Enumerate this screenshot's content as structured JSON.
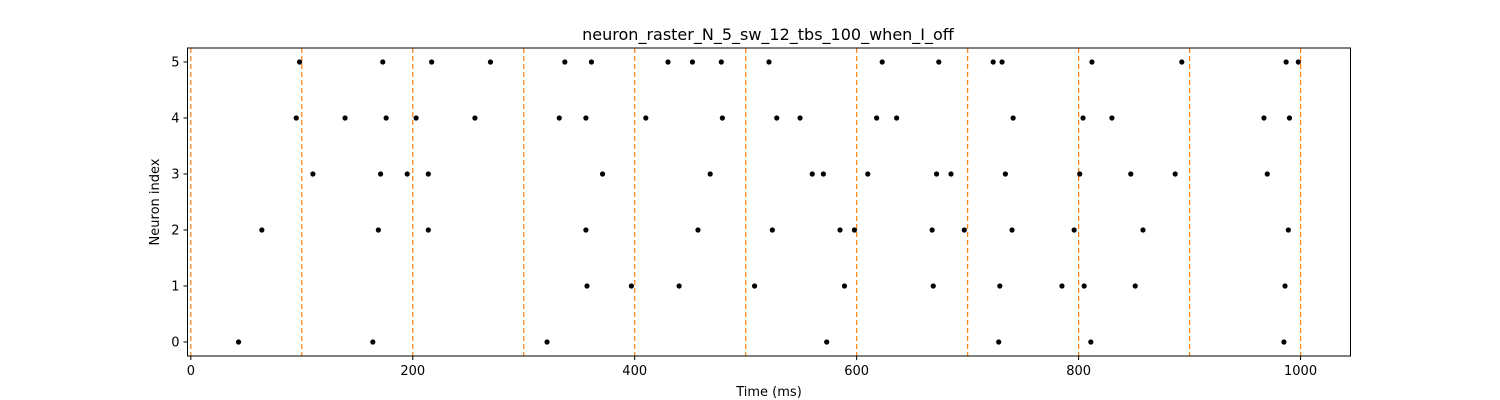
{
  "chart_data": {
    "type": "scatter",
    "title": "neuron_raster_N_5_sw_12_tbs_100_when_I_off",
    "xlabel": "Time (ms)",
    "ylabel": "Neuron index",
    "xlim": [
      -3,
      1045
    ],
    "ylim": [
      -0.25,
      5.25
    ],
    "xticks": [
      0,
      200,
      400,
      600,
      800,
      1000
    ],
    "yticks": [
      0,
      1,
      2,
      3,
      4,
      5
    ],
    "grid": false,
    "marker_color": "#000000",
    "boundary_color": "#ff7f0e",
    "boundaries": [
      0,
      100,
      200,
      300,
      400,
      500,
      600,
      700,
      800,
      900,
      1000
    ],
    "series": [
      {
        "neuron": 0,
        "spikes": [
          43,
          164,
          321,
          573,
          728,
          811,
          985
        ]
      },
      {
        "neuron": 1,
        "spikes": [
          357,
          397,
          440,
          508,
          589,
          669,
          729,
          785,
          805,
          851,
          986
        ]
      },
      {
        "neuron": 2,
        "spikes": [
          64,
          169,
          214,
          356,
          457,
          524,
          585,
          598,
          668,
          697,
          740,
          796,
          858,
          989
        ]
      },
      {
        "neuron": 3,
        "spikes": [
          110,
          171,
          195,
          214,
          371,
          468,
          560,
          570,
          610,
          672,
          685,
          734,
          801,
          847,
          887,
          970
        ]
      },
      {
        "neuron": 4,
        "spikes": [
          95,
          139,
          176,
          203,
          256,
          332,
          356,
          410,
          479,
          528,
          549,
          618,
          636,
          741,
          804,
          830,
          967,
          990
        ]
      },
      {
        "neuron": 5,
        "spikes": [
          98,
          173,
          217,
          270,
          337,
          361,
          430,
          452,
          478,
          521,
          623,
          674,
          723,
          731,
          812,
          893,
          987,
          998
        ]
      }
    ]
  }
}
